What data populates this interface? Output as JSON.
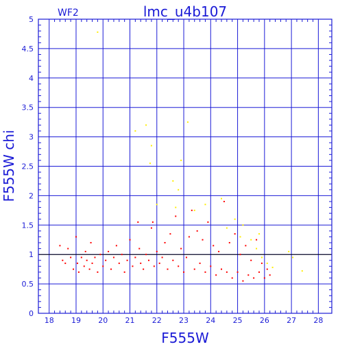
{
  "chart_data": {
    "type": "scatter",
    "title": "lmc_u4b107",
    "panel_label": "WF2",
    "xlabel": "F555W",
    "ylabel": "F555W chi",
    "xlim": [
      17.6,
      28.5
    ],
    "ylim": [
      0,
      5
    ],
    "x_ticks": [
      18,
      19,
      20,
      21,
      22,
      23,
      24,
      25,
      26,
      27,
      28
    ],
    "x_tick_labels": [
      "18",
      "19",
      "20",
      "21",
      "22",
      "23",
      "24",
      "25",
      "26",
      "27",
      "28"
    ],
    "y_ticks": [
      0,
      0.5,
      1,
      1.5,
      2,
      2.5,
      3,
      3.5,
      4,
      4.5,
      5
    ],
    "y_tick_labels": [
      "0",
      "0.5",
      "1",
      "1.5",
      "2",
      "2.5",
      "3",
      "3.5",
      "4",
      "4.5",
      "5"
    ],
    "grid": true,
    "reference_line_y": 1,
    "colors": {
      "axes": "#1a1ad6",
      "grid": "#1a1ad6",
      "red_series": "#ff0000",
      "yellow_series": "#ffee00"
    },
    "series": [
      {
        "color": "red",
        "points": [
          [
            18.4,
            1.15
          ],
          [
            18.5,
            0.9
          ],
          [
            18.6,
            0.85
          ],
          [
            18.7,
            1.1
          ],
          [
            18.8,
            0.95
          ],
          [
            18.9,
            0.75
          ],
          [
            19.0,
            1.3
          ],
          [
            19.05,
            0.85
          ],
          [
            19.1,
            0.7
          ],
          [
            19.2,
            0.95
          ],
          [
            19.3,
            0.8
          ],
          [
            19.35,
            1.05
          ],
          [
            19.4,
            0.9
          ],
          [
            19.5,
            0.75
          ],
          [
            19.55,
            1.2
          ],
          [
            19.6,
            0.85
          ],
          [
            19.7,
            0.95
          ],
          [
            19.8,
            0.7
          ],
          [
            19.9,
            1.0
          ],
          [
            20.0,
            0.8
          ],
          [
            20.1,
            0.9
          ],
          [
            20.2,
            1.05
          ],
          [
            20.3,
            0.75
          ],
          [
            20.4,
            0.95
          ],
          [
            20.5,
            1.15
          ],
          [
            20.6,
            0.85
          ],
          [
            20.7,
            1.0
          ],
          [
            20.8,
            0.7
          ],
          [
            20.9,
            0.9
          ],
          [
            21.0,
            1.25
          ],
          [
            21.1,
            0.8
          ],
          [
            21.2,
            0.95
          ],
          [
            21.3,
            1.55
          ],
          [
            21.35,
            1.1
          ],
          [
            21.4,
            0.85
          ],
          [
            21.5,
            0.75
          ],
          [
            21.6,
            1.0
          ],
          [
            21.7,
            0.9
          ],
          [
            21.8,
            1.45
          ],
          [
            21.85,
            1.55
          ],
          [
            21.9,
            0.8
          ],
          [
            22.0,
            1.05
          ],
          [
            22.1,
            0.85
          ],
          [
            22.2,
            0.95
          ],
          [
            22.3,
            1.2
          ],
          [
            22.4,
            0.75
          ],
          [
            22.5,
            1.35
          ],
          [
            22.6,
            0.9
          ],
          [
            22.7,
            1.65
          ],
          [
            22.8,
            0.8
          ],
          [
            22.9,
            1.1
          ],
          [
            23.0,
            0.7
          ],
          [
            23.1,
            0.95
          ],
          [
            23.2,
            1.3
          ],
          [
            23.3,
            1.75
          ],
          [
            23.4,
            0.75
          ],
          [
            23.5,
            1.4
          ],
          [
            23.6,
            0.85
          ],
          [
            23.7,
            1.25
          ],
          [
            23.8,
            0.7
          ],
          [
            23.9,
            1.55
          ],
          [
            24.0,
            0.8
          ],
          [
            24.1,
            1.15
          ],
          [
            24.2,
            0.65
          ],
          [
            24.3,
            1.05
          ],
          [
            24.4,
            0.75
          ],
          [
            24.5,
            1.9
          ],
          [
            24.6,
            0.7
          ],
          [
            24.7,
            1.2
          ],
          [
            24.8,
            0.6
          ],
          [
            24.9,
            1.35
          ],
          [
            25.0,
            0.7
          ],
          [
            25.1,
            1.0
          ],
          [
            25.2,
            0.55
          ],
          [
            25.3,
            1.15
          ],
          [
            25.4,
            0.65
          ],
          [
            25.5,
            0.9
          ],
          [
            25.6,
            0.6
          ],
          [
            25.7,
            1.25
          ],
          [
            25.8,
            0.7
          ],
          [
            25.9,
            0.85
          ],
          [
            26.0,
            0.6
          ],
          [
            26.1,
            0.75
          ],
          [
            26.2,
            0.65
          ]
        ]
      },
      {
        "color": "yellow",
        "points": [
          [
            19.8,
            4.78
          ],
          [
            21.2,
            3.1
          ],
          [
            21.6,
            3.2
          ],
          [
            21.8,
            2.85
          ],
          [
            21.75,
            2.55
          ],
          [
            22.9,
            2.6
          ],
          [
            22.6,
            2.25
          ],
          [
            22.8,
            2.1
          ],
          [
            23.15,
            3.25
          ],
          [
            22.0,
            1.85
          ],
          [
            22.7,
            1.8
          ],
          [
            23.4,
            1.75
          ],
          [
            23.8,
            1.85
          ],
          [
            24.4,
            1.95
          ],
          [
            24.9,
            1.6
          ],
          [
            25.2,
            1.5
          ],
          [
            25.1,
            1.3
          ],
          [
            25.5,
            1.25
          ],
          [
            25.7,
            1.1
          ],
          [
            25.9,
            0.95
          ],
          [
            26.1,
            0.85
          ],
          [
            26.3,
            0.78
          ],
          [
            26.9,
            1.05
          ],
          [
            27.05,
            0.95
          ],
          [
            27.4,
            0.72
          ],
          [
            24.6,
            1.45
          ],
          [
            25.8,
            1.35
          ]
        ]
      }
    ]
  }
}
